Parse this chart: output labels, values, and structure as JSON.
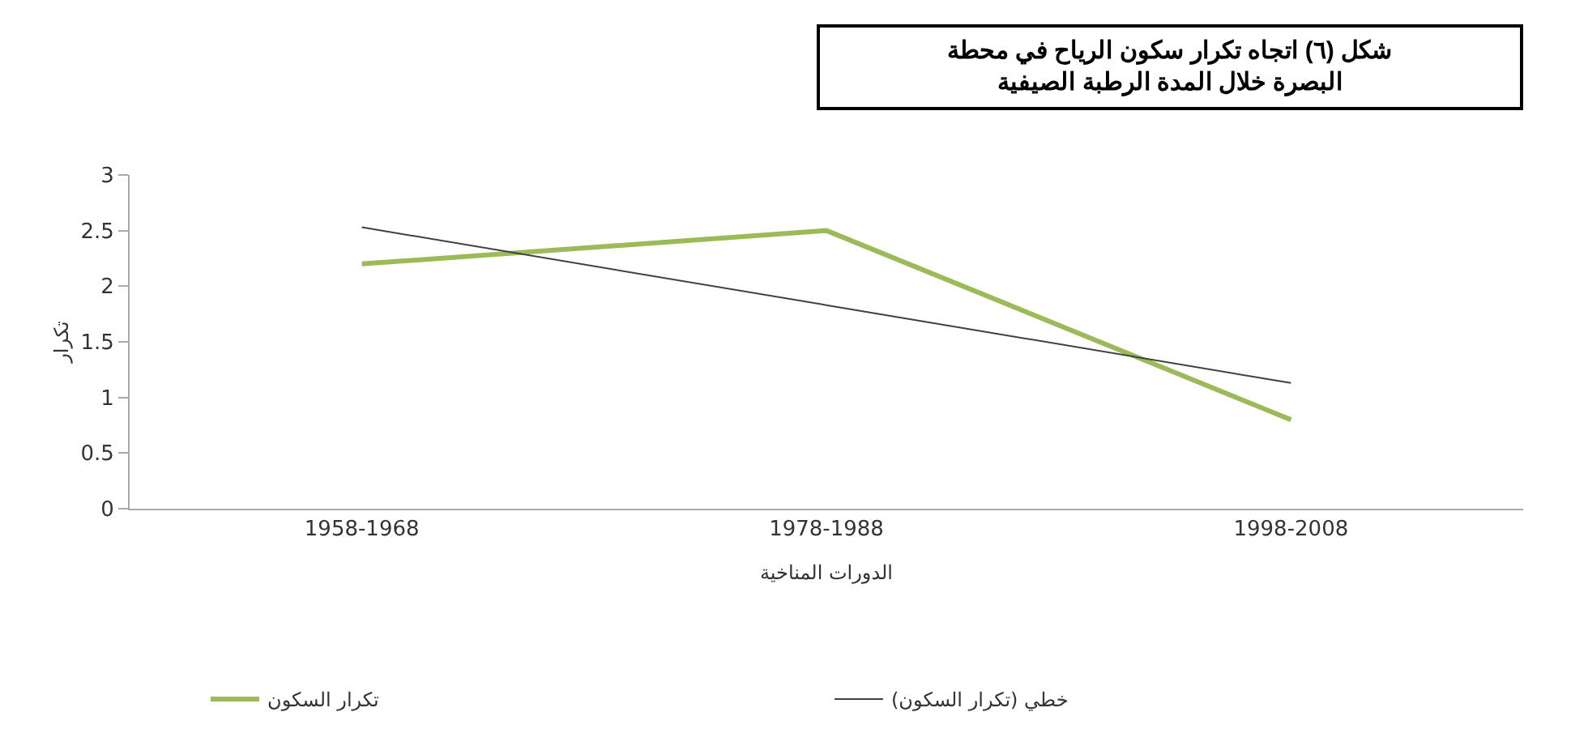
{
  "chart_data": {
    "type": "line",
    "title": "شكل (٦) اتجاه تكرار سكون الرياح في محطة\nالبصرة خلال المدة الرطبة الصيفية",
    "xlabel": "الدورات المناخية",
    "ylabel": "تكرار",
    "categories": [
      "1958-1968",
      "1978-1988",
      "1998-2008"
    ],
    "series": [
      {
        "name": "تكرار السكون",
        "color": "#9bbb59",
        "values": [
          2.2,
          2.5,
          0.8
        ]
      },
      {
        "name": "خطي (تكرار السكون)",
        "color": "#404040",
        "type": "line",
        "values": [
          2.53,
          1.83,
          1.13
        ]
      }
    ],
    "ylim": [
      0,
      3
    ],
    "yticks": [
      0,
      0.5,
      1,
      1.5,
      2,
      2.5,
      3
    ],
    "legend": "bottom",
    "marker": "none"
  }
}
